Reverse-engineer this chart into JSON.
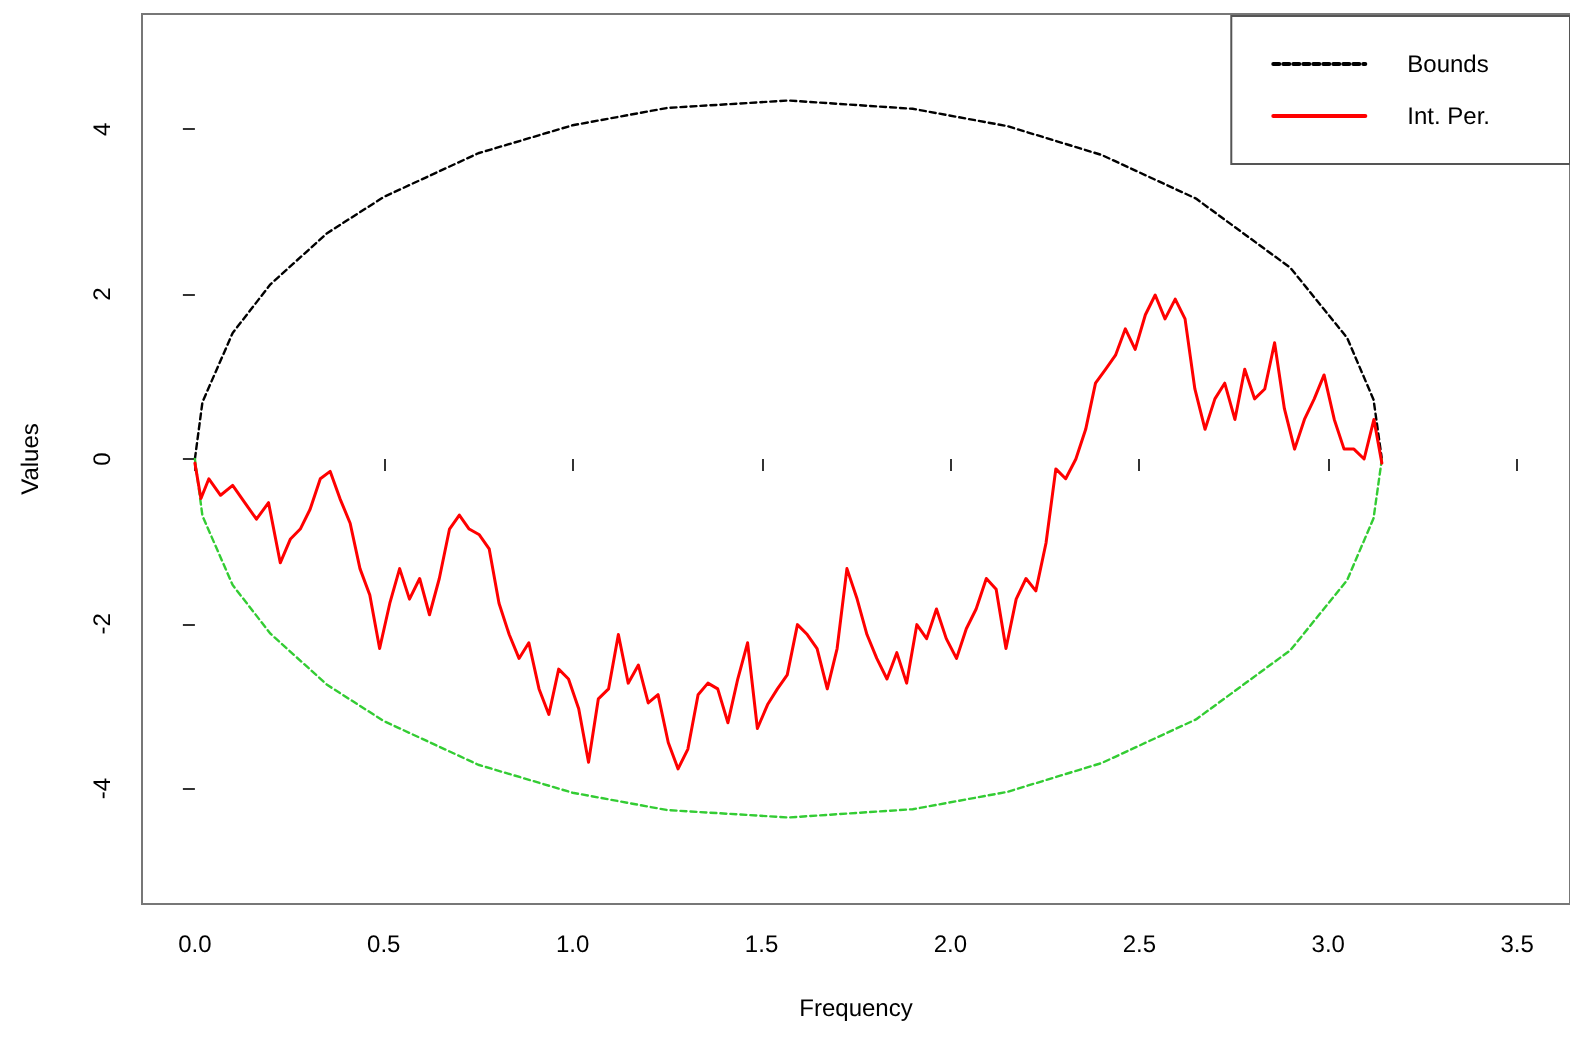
{
  "chart_data": {
    "type": "line",
    "xlabel": "Frequency",
    "ylabel": "Values",
    "xlim": [
      -0.14,
      3.64
    ],
    "ylim": [
      -5.4,
      5.4
    ],
    "xticks": [
      {
        "value": 0,
        "label": "0.0"
      },
      0.5,
      {
        "value": 1,
        "label": "1.0"
      },
      1.5,
      {
        "value": 2,
        "label": "2.0"
      },
      2.5,
      {
        "value": 3,
        "label": "3.0"
      },
      3.5
    ],
    "yticks": [
      -4,
      -2,
      0,
      2,
      4
    ],
    "grid": false,
    "legend": "top right",
    "marker": "none",
    "series": [
      {
        "name": "Bounds",
        "color": "#000000",
        "line_style": "dashed",
        "x": [
          0,
          0.02,
          0.1,
          0.2,
          0.35,
          0.5,
          0.75,
          1,
          1.25,
          1.571,
          1.9,
          2.15,
          2.4,
          2.65,
          2.9,
          3.05,
          3.12,
          3.142
        ],
        "values": [
          0,
          0.69,
          1.53,
          2.12,
          2.74,
          3.18,
          3.71,
          4.05,
          4.26,
          4.35,
          4.25,
          4.04,
          3.69,
          3.16,
          2.32,
          1.47,
          0.72,
          0
        ]
      },
      {
        "color": "#33cc33",
        "line_style": "dashed",
        "x": [
          0,
          0.02,
          0.1,
          0.2,
          0.35,
          0.5,
          0.75,
          1,
          1.25,
          1.571,
          1.9,
          2.15,
          2.4,
          2.65,
          2.9,
          3.05,
          3.12,
          3.142
        ],
        "values": [
          0,
          -0.69,
          -1.53,
          -2.12,
          -2.74,
          -3.18,
          -3.71,
          -4.05,
          -4.26,
          -4.35,
          -4.25,
          -4.04,
          -3.69,
          -3.16,
          -2.32,
          -1.47,
          -0.72,
          0
        ]
      },
      {
        "name": "Int. Per.",
        "color": "#ff0000",
        "line_style": "solid",
        "x": [
          0,
          0.016,
          0.037,
          0.068,
          0.1,
          0.132,
          0.163,
          0.195,
          0.226,
          0.253,
          0.279,
          0.305,
          0.332,
          0.358,
          0.384,
          0.411,
          0.437,
          0.463,
          0.489,
          0.516,
          0.542,
          0.568,
          0.595,
          0.621,
          0.647,
          0.674,
          0.7,
          0.726,
          0.753,
          0.779,
          0.805,
          0.832,
          0.858,
          0.884,
          0.911,
          0.937,
          0.963,
          0.989,
          1.016,
          1.042,
          1.068,
          1.095,
          1.121,
          1.147,
          1.174,
          1.2,
          1.226,
          1.253,
          1.279,
          1.305,
          1.332,
          1.358,
          1.384,
          1.411,
          1.437,
          1.463,
          1.489,
          1.516,
          1.542,
          1.568,
          1.595,
          1.621,
          1.647,
          1.674,
          1.7,
          1.726,
          1.753,
          1.779,
          1.805,
          1.832,
          1.858,
          1.884,
          1.911,
          1.937,
          1.963,
          1.989,
          2.016,
          2.042,
          2.068,
          2.095,
          2.121,
          2.147,
          2.174,
          2.2,
          2.226,
          2.253,
          2.279,
          2.305,
          2.332,
          2.358,
          2.384,
          2.411,
          2.437,
          2.463,
          2.489,
          2.516,
          2.542,
          2.568,
          2.595,
          2.621,
          2.647,
          2.674,
          2.7,
          2.726,
          2.753,
          2.779,
          2.805,
          2.832,
          2.858,
          2.884,
          2.911,
          2.937,
          2.963,
          2.989,
          3.016,
          3.042,
          3.068,
          3.095,
          3.121,
          3.142
        ],
        "values": [
          -0.05,
          -0.48,
          -0.24,
          -0.44,
          -0.32,
          -0.53,
          -0.73,
          -0.53,
          -1.26,
          -0.97,
          -0.85,
          -0.61,
          -0.24,
          -0.15,
          -0.48,
          -0.78,
          -1.33,
          -1.65,
          -2.3,
          -1.75,
          -1.33,
          -1.7,
          -1.45,
          -1.89,
          -1.45,
          -0.85,
          -0.68,
          -0.85,
          -0.92,
          -1.09,
          -1.75,
          -2.13,
          -2.42,
          -2.23,
          -2.79,
          -3.1,
          -2.55,
          -2.67,
          -3.03,
          -3.68,
          -2.91,
          -2.79,
          -2.13,
          -2.72,
          -2.5,
          -2.96,
          -2.86,
          -3.44,
          -3.76,
          -3.52,
          -2.86,
          -2.72,
          -2.79,
          -3.2,
          -2.67,
          -2.23,
          -3.27,
          -2.98,
          -2.79,
          -2.62,
          -2.01,
          -2.13,
          -2.3,
          -2.79,
          -2.3,
          -1.33,
          -1.7,
          -2.13,
          -2.42,
          -2.67,
          -2.35,
          -2.72,
          -2.01,
          -2.18,
          -1.82,
          -2.18,
          -2.42,
          -2.06,
          -1.82,
          -1.45,
          -1.58,
          -2.3,
          -1.7,
          -1.45,
          -1.6,
          -1.02,
          -0.12,
          -0.24,
          0,
          0.36,
          0.92,
          1.09,
          1.26,
          1.58,
          1.33,
          1.75,
          1.99,
          1.7,
          1.94,
          1.7,
          0.85,
          0.36,
          0.73,
          0.92,
          0.48,
          1.09,
          0.73,
          0.85,
          1.41,
          0.61,
          0.12,
          0.48,
          0.73,
          1.02,
          0.48,
          0.12,
          0.12,
          0,
          0.48,
          -0.05
        ]
      }
    ]
  }
}
